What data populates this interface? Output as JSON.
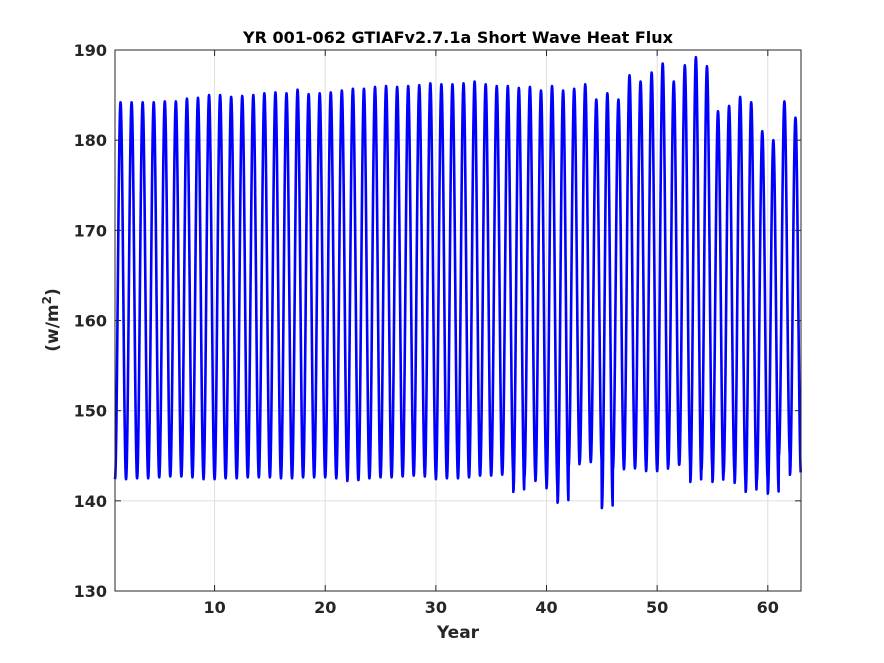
{
  "chart_data": {
    "type": "line",
    "title": "YR 001-062 GTIAFv2.7.1a Short Wave Heat Flux",
    "xlabel": "Year",
    "ylabel_base": "(w/m",
    "ylabel_sup": "2",
    "ylabel_close": ")",
    "xlim": [
      1,
      63
    ],
    "ylim": [
      130,
      190
    ],
    "xticks": [
      10,
      20,
      30,
      40,
      50,
      60
    ],
    "yticks": [
      130,
      140,
      150,
      160,
      170,
      180,
      190
    ],
    "grid": true,
    "line_color": "#0000ff",
    "seasonal_cycle": {
      "period_years": 1,
      "peak_phase": 0.5,
      "x_start": 1,
      "x_end": 63
    },
    "series": [
      {
        "x": [
          1,
          2,
          3,
          4,
          5,
          6,
          7,
          8,
          9,
          10,
          11,
          12,
          13,
          14,
          15,
          16,
          17,
          18,
          19,
          20,
          21,
          22,
          23,
          24,
          25,
          26,
          27,
          28,
          29,
          30,
          31,
          32,
          33,
          34,
          35,
          36,
          37,
          38,
          39,
          40,
          41,
          42,
          43,
          44,
          45,
          46,
          47,
          48,
          49,
          50,
          51,
          52,
          53,
          54,
          55,
          56,
          57,
          58,
          59,
          60,
          61,
          62
        ],
        "annual_max": [
          184.2,
          184.2,
          184.2,
          184.2,
          184.3,
          184.3,
          184.6,
          184.7,
          185.0,
          185.0,
          184.8,
          184.9,
          185.0,
          185.2,
          185.3,
          185.2,
          185.6,
          185.1,
          185.2,
          185.3,
          185.5,
          185.7,
          185.7,
          185.9,
          186.0,
          185.9,
          186.0,
          186.1,
          186.3,
          186.2,
          186.2,
          186.3,
          186.5,
          186.2,
          186.0,
          186.0,
          185.8,
          185.9,
          185.5,
          186.0,
          185.5,
          185.7,
          186.2,
          184.5,
          185.2,
          184.5,
          187.2,
          186.5,
          187.5,
          188.5,
          186.5,
          188.3,
          189.2,
          188.2,
          183.2,
          183.8,
          184.8,
          184.2,
          181.0,
          180.0,
          184.3,
          182.5
        ],
        "annual_min": [
          142.4,
          142.4,
          142.5,
          142.5,
          142.6,
          142.7,
          142.7,
          142.6,
          142.4,
          142.4,
          142.5,
          142.5,
          142.6,
          142.6,
          142.6,
          142.5,
          142.5,
          142.6,
          142.6,
          142.6,
          142.5,
          142.2,
          142.3,
          142.5,
          142.6,
          142.6,
          142.7,
          142.8,
          142.7,
          142.4,
          142.5,
          142.5,
          142.6,
          142.8,
          142.8,
          142.9,
          141.0,
          142.6,
          142.2,
          141.4,
          139.8,
          143.8,
          144.3,
          144.3,
          139.2,
          143.5,
          143.5,
          143.6,
          143.3,
          143.3,
          143.8,
          144.0,
          142.1,
          143.4,
          142.1,
          143.0,
          142.0,
          141.0,
          142.2,
          140.8,
          145.0,
          142.9
        ]
      }
    ]
  }
}
